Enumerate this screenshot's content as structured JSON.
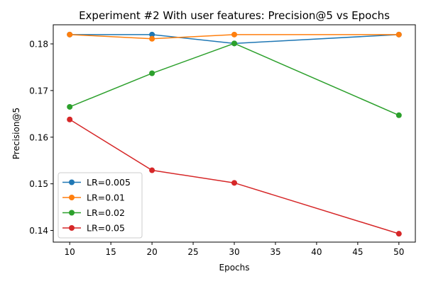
{
  "chart_data": {
    "type": "line",
    "title": "Experiment #2 With user features: Precision@5 vs Epochs",
    "xlabel": "Epochs",
    "ylabel": "Precision@5",
    "x": [
      10,
      20,
      30,
      50
    ],
    "xlim": [
      8,
      52
    ],
    "ylim": [
      0.1375,
      0.1841
    ],
    "xticks": [
      10,
      15,
      20,
      25,
      30,
      35,
      40,
      45,
      50
    ],
    "yticks": [
      0.14,
      0.15,
      0.16,
      0.17,
      0.18
    ],
    "ytick_labels": [
      "0.14",
      "0.15",
      "0.16",
      "0.17",
      "0.18"
    ],
    "grid": false,
    "legend_position": "lower-left",
    "series": [
      {
        "name": "LR=0.005",
        "color": "#1f77b4",
        "values": [
          0.182,
          0.182,
          0.1801,
          0.182
        ]
      },
      {
        "name": "LR=0.01",
        "color": "#ff7f0e",
        "values": [
          0.182,
          0.1811,
          0.182,
          0.182
        ]
      },
      {
        "name": "LR=0.02",
        "color": "#2ca02c",
        "values": [
          0.1665,
          0.1737,
          0.1801,
          0.1647
        ]
      },
      {
        "name": "LR=0.05",
        "color": "#d62728",
        "values": [
          0.1638,
          0.1529,
          0.1502,
          0.1393
        ]
      }
    ]
  }
}
